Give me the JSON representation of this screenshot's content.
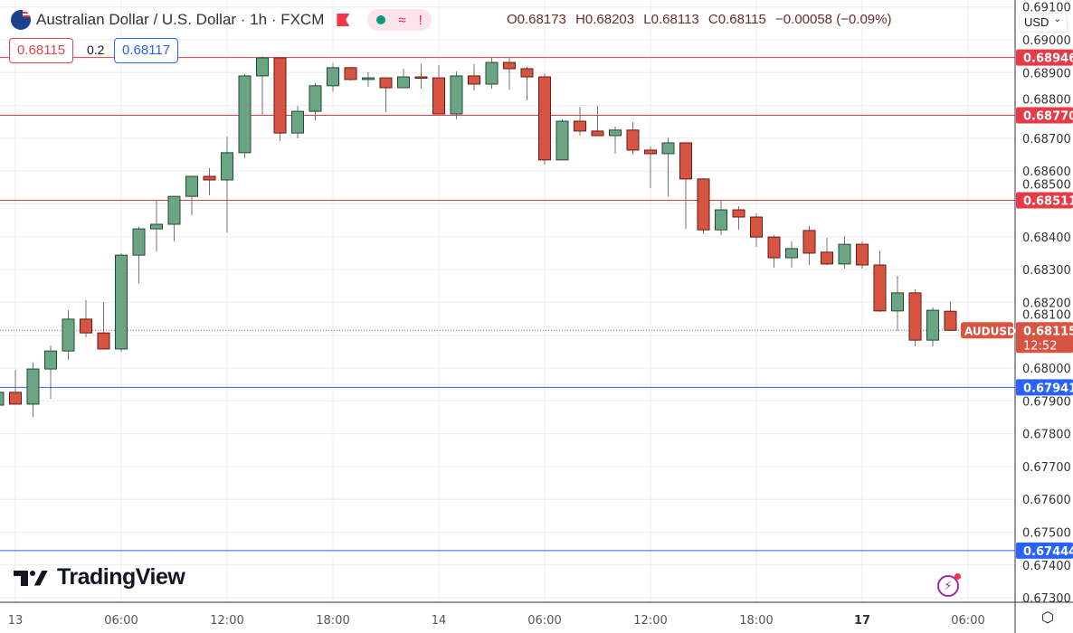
{
  "header": {
    "title": "Australian Dollar / U.S. Dollar · 1h · FXCM",
    "pill_icons": [
      "market-open-dot-icon",
      "approx-icon",
      "alert-icon"
    ],
    "approx_symbol": "≈",
    "alert_symbol": "!",
    "ohlc": {
      "open": "O0.68173",
      "high": "H0.68203",
      "low": "L0.68113",
      "close": "C0.68115",
      "change": "−0.00058 (−0.09%)"
    },
    "bid": "0.68115",
    "spread": "0.2",
    "ask": "0.68117"
  },
  "currency_selector": "USD",
  "branding": "TradingView",
  "symbol_label": "AUDUSD",
  "countdown": "12:52",
  "colors": {
    "up": "#6ba583",
    "down": "#d75442",
    "resistance": "#e53a48",
    "support": "#2962ff",
    "grid": "#ececec"
  },
  "chart_data": {
    "type": "candlestick",
    "ylim": [
      0.6727,
      0.6912
    ],
    "grid": true,
    "y_ticks": [
      "0.69100",
      "0.69000",
      "0.68900",
      "0.68800",
      "0.68700",
      "0.68600",
      "0.68500",
      "0.68400",
      "0.68300",
      "0.68200",
      "0.68100",
      "0.68000",
      "0.67900",
      "0.67800",
      "0.67700",
      "0.67600",
      "0.67500",
      "0.67400",
      "0.67300"
    ],
    "x_ticks": [
      "13",
      "06:00",
      "12:00",
      "18:00",
      "14",
      "06:00",
      "12:00",
      "18:00",
      "17",
      "06:00"
    ],
    "last_price": "0.68115",
    "horizontal_lines": [
      {
        "value": "0.68946",
        "kind": "resistance"
      },
      {
        "value": "0.68770",
        "kind": "resistance"
      },
      {
        "value": "0.68511",
        "kind": "resistance"
      },
      {
        "value": "0.67941",
        "kind": "support"
      },
      {
        "value": "0.67444",
        "kind": "support"
      }
    ],
    "candles_columns": [
      "time",
      "open",
      "high",
      "low",
      "close"
    ],
    "candles": [
      [
        "12 23:00",
        0.67887,
        0.67926,
        0.67887,
        0.67926
      ],
      [
        "13 00:00",
        0.67926,
        0.67994,
        0.6789,
        0.6789
      ],
      [
        "13 01:00",
        0.6789,
        0.68017,
        0.67851,
        0.67997
      ],
      [
        "13 02:00",
        0.67997,
        0.68069,
        0.67906,
        0.68052
      ],
      [
        "13 03:00",
        0.68052,
        0.68176,
        0.68025,
        0.68149
      ],
      [
        "13 04:00",
        0.68149,
        0.68207,
        0.68094,
        0.68107
      ],
      [
        "13 05:00",
        0.68107,
        0.68201,
        0.68058,
        0.68058
      ],
      [
        "13 06:00",
        0.68058,
        0.6835,
        0.6805,
        0.68344
      ],
      [
        "13 07:00",
        0.68344,
        0.6843,
        0.68259,
        0.68424
      ],
      [
        "13 08:00",
        0.68424,
        0.68512,
        0.68355,
        0.68438
      ],
      [
        "13 09:00",
        0.68438,
        0.68523,
        0.68386,
        0.68523
      ],
      [
        "13 10:00",
        0.68523,
        0.68584,
        0.68466,
        0.68584
      ],
      [
        "13 11:00",
        0.68584,
        0.68609,
        0.68526,
        0.68573
      ],
      [
        "13 12:00",
        0.68573,
        0.68705,
        0.68413,
        0.68656
      ],
      [
        "13 13:00",
        0.68656,
        0.68895,
        0.68639,
        0.6889
      ],
      [
        "13 14:00",
        0.6889,
        0.6895,
        0.68771,
        0.68945
      ],
      [
        "13 15:00",
        0.68945,
        0.68948,
        0.68691,
        0.68716
      ],
      [
        "13 16:00",
        0.68716,
        0.68799,
        0.687,
        0.68782
      ],
      [
        "13 17:00",
        0.68782,
        0.68868,
        0.68755,
        0.6886
      ],
      [
        "13 18:00",
        0.6886,
        0.68928,
        0.68843,
        0.68915
      ],
      [
        "13 19:00",
        0.68915,
        0.68917,
        0.68876,
        0.68879
      ],
      [
        "13 20:00",
        0.68879,
        0.68901,
        0.68857,
        0.68884
      ],
      [
        "13 21:00",
        0.68884,
        0.68884,
        0.6878,
        0.68854
      ],
      [
        "13 22:00",
        0.68854,
        0.68912,
        0.68854,
        0.68887
      ],
      [
        "13 23:00",
        0.68887,
        0.68926,
        0.68851,
        0.68884
      ],
      [
        "14 00:00",
        0.68884,
        0.68923,
        0.68774,
        0.68774
      ],
      [
        "14 01:00",
        0.68774,
        0.68904,
        0.68758,
        0.6889
      ],
      [
        "14 02:00",
        0.6889,
        0.68926,
        0.68846,
        0.68865
      ],
      [
        "14 03:00",
        0.68865,
        0.68948,
        0.68851,
        0.68931
      ],
      [
        "14 04:00",
        0.68931,
        0.68948,
        0.68848,
        0.68912
      ],
      [
        "14 05:00",
        0.68912,
        0.68917,
        0.68815,
        0.68887
      ],
      [
        "14 06:00",
        0.68887,
        0.68898,
        0.6862,
        0.68634
      ],
      [
        "14 07:00",
        0.68634,
        0.68758,
        0.68634,
        0.68752
      ],
      [
        "14 08:00",
        0.68752,
        0.68796,
        0.68708,
        0.68722
      ],
      [
        "14 09:00",
        0.68722,
        0.68799,
        0.68708,
        0.68708
      ],
      [
        "14 10:00",
        0.68708,
        0.68736,
        0.68653,
        0.68725
      ],
      [
        "14 11:00",
        0.68725,
        0.68749,
        0.6865,
        0.68664
      ],
      [
        "14 12:00",
        0.68664,
        0.68675,
        0.68548,
        0.68653
      ],
      [
        "14 13:00",
        0.68653,
        0.68702,
        0.68523,
        0.68686
      ],
      [
        "14 14:00",
        0.68686,
        0.68686,
        0.68424,
        0.68576
      ],
      [
        "14 15:00",
        0.68576,
        0.68579,
        0.68408,
        0.68421
      ],
      [
        "14 16:00",
        0.68421,
        0.68512,
        0.68405,
        0.68482
      ],
      [
        "14 17:00",
        0.68482,
        0.68493,
        0.68421,
        0.6846
      ],
      [
        "14 18:00",
        0.6846,
        0.68471,
        0.68369,
        0.68399
      ],
      [
        "14 19:00",
        0.68399,
        0.68405,
        0.68306,
        0.68336
      ],
      [
        "14 20:00",
        0.68336,
        0.68386,
        0.68306,
        0.68364
      ],
      [
        "14 21:00",
        0.68419,
        0.68433,
        0.68314,
        0.6835
      ],
      [
        "14 22:00",
        0.68353,
        0.68397,
        0.68314,
        0.68317
      ],
      [
        "14 23:00",
        0.68317,
        0.68402,
        0.68303,
        0.68377
      ],
      [
        "17 00:00",
        0.68377,
        0.68386,
        0.68303,
        0.68314
      ],
      [
        "17 01:00",
        0.68314,
        0.68358,
        0.68171,
        0.68174
      ],
      [
        "17 02:00",
        0.68174,
        0.68281,
        0.68113,
        0.68229
      ],
      [
        "17 03:00",
        0.68229,
        0.6824,
        0.68066,
        0.68085
      ],
      [
        "17 04:00",
        0.68085,
        0.68185,
        0.68066,
        0.68176
      ],
      [
        "17 05:00",
        0.68173,
        0.68203,
        0.68113,
        0.68115
      ]
    ]
  }
}
